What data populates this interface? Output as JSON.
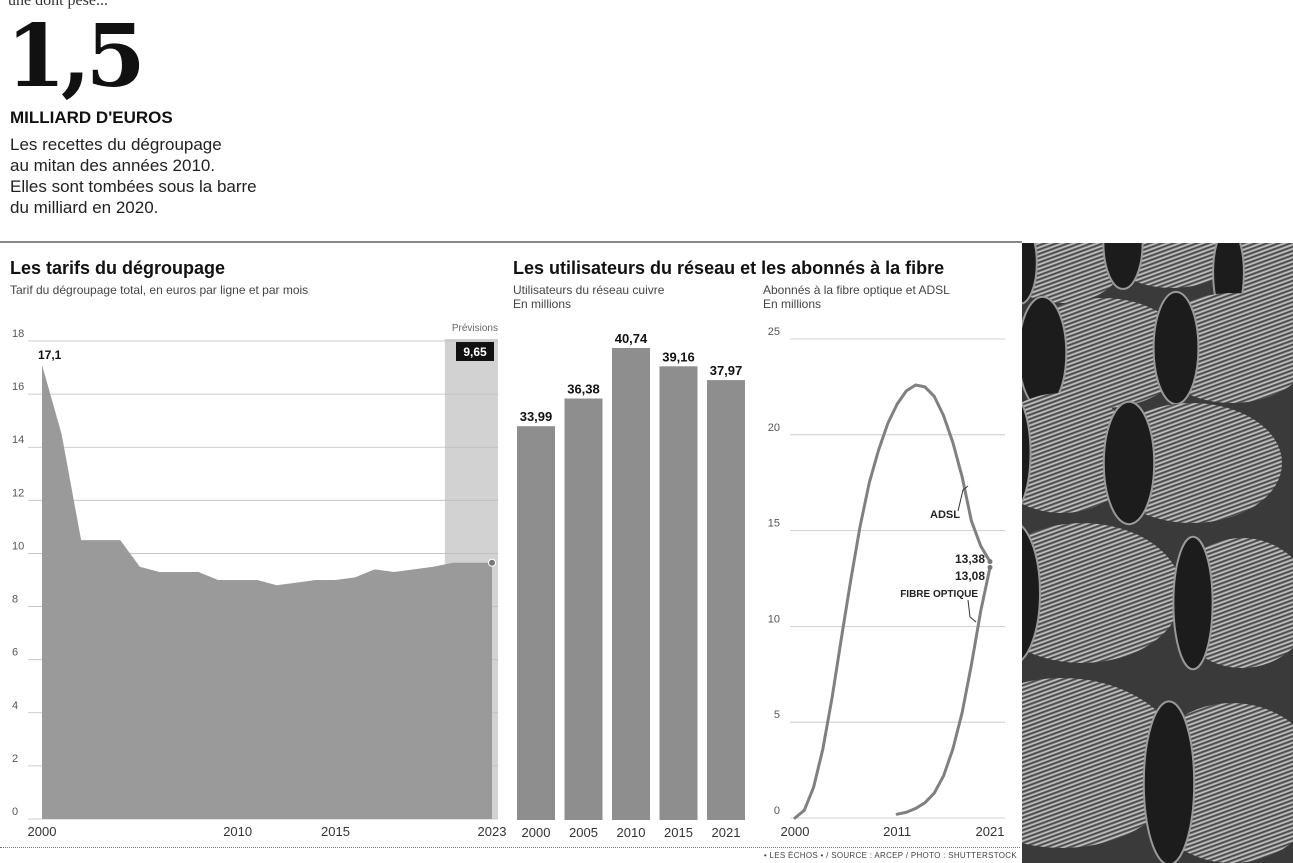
{
  "header": {
    "cut_text": "une dont pèse...",
    "big_number": "1,5",
    "unit": "MILLIARD D'EUROS",
    "intro_lines": [
      "Les recettes du dégroupage",
      "au mitan des années 2010.",
      "Elles sont tombées sous la barre",
      "du milliard en 2020."
    ]
  },
  "tarifs": {
    "title": "Les tarifs du dégroupage",
    "subtitle": "Tarif du dégroupage total, en euros par ligne et par mois",
    "forecast_label": "Prévisions",
    "first_label": "17,1",
    "last_label": "9,65"
  },
  "utilisateurs": {
    "title": "Les utilisateurs du réseau et les abonnés à la fibre",
    "bar_sub_lines": [
      "Utilisateurs du réseau cuivre",
      "En millions"
    ],
    "line_sub_lines": [
      "Abonnés à la fibre optique et ADSL",
      "En millions"
    ],
    "adsl_label": "ADSL",
    "adsl_value": "13,38",
    "fibre_value": "13,08",
    "fibre_label": "FIBRE OPTIQUE"
  },
  "credit": "• LES ÉCHOS • / SOURCE : ARCEP / PHOTO : SHUTTERSTOCK",
  "colors": {
    "area_fill": "#9a9a9a",
    "bar_fill": "#8e8e8e",
    "line_stroke": "#808080",
    "label_box": "#111111"
  },
  "chart_data": [
    {
      "type": "area",
      "x": [
        2000,
        2001,
        2002,
        2003,
        2004,
        2005,
        2006,
        2007,
        2008,
        2009,
        2010,
        2011,
        2012,
        2013,
        2014,
        2015,
        2016,
        2017,
        2018,
        2019,
        2020,
        2021,
        2022,
        2023
      ],
      "values": [
        17.1,
        14.5,
        10.5,
        10.5,
        10.5,
        9.5,
        9.3,
        9.3,
        9.3,
        9.0,
        9.0,
        9.0,
        8.8,
        8.9,
        9.0,
        9.0,
        9.1,
        9.4,
        9.3,
        9.4,
        9.5,
        9.65,
        9.65,
        9.65
      ],
      "ylim": [
        0,
        18
      ],
      "yticks": [
        0,
        2,
        4,
        6,
        8,
        10,
        12,
        14,
        16,
        18
      ],
      "xticks": [
        2000,
        2010,
        2015,
        2023
      ],
      "forecast_range": [
        2021,
        2023
      ],
      "grid": true
    },
    {
      "type": "bar",
      "categories": [
        "2000",
        "2005",
        "2010",
        "2015",
        "2021"
      ],
      "values": [
        33.99,
        36.38,
        40.74,
        39.16,
        37.97
      ],
      "data_labels": [
        "33,99",
        "36,38",
        "40,74",
        "39,16",
        "37,97"
      ]
    },
    {
      "type": "line",
      "ylim": [
        0,
        25
      ],
      "yticks": [
        0,
        5,
        10,
        15,
        20,
        25
      ],
      "xticks": [
        "2000",
        "2011",
        "2021"
      ],
      "grid": true,
      "series": [
        {
          "name": "ADSL",
          "x": [
            2000,
            2001,
            2002,
            2003,
            2004,
            2005,
            2006,
            2007,
            2008,
            2009,
            2010,
            2011,
            2012,
            2013,
            2014,
            2015,
            2016,
            2017,
            2018,
            2019,
            2020,
            2021
          ],
          "values": [
            0,
            0.4,
            1.6,
            3.6,
            6.3,
            9.4,
            12.4,
            15.2,
            17.5,
            19.2,
            20.6,
            21.6,
            22.3,
            22.6,
            22.5,
            22.0,
            21.0,
            19.6,
            17.8,
            15.5,
            14.2,
            13.38
          ]
        },
        {
          "name": "FIBRE OPTIQUE",
          "x": [
            2011,
            2012,
            2013,
            2014,
            2015,
            2016,
            2017,
            2018,
            2019,
            2020,
            2021
          ],
          "values": [
            0.2,
            0.3,
            0.5,
            0.8,
            1.3,
            2.2,
            3.6,
            5.5,
            8.0,
            10.8,
            13.08
          ]
        }
      ]
    }
  ]
}
